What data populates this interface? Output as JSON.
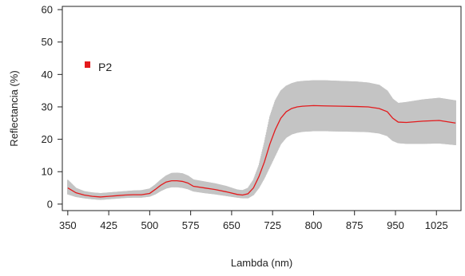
{
  "chart_data": {
    "type": "line",
    "title": "",
    "xlabel": "Lambda (nm)",
    "ylabel": "Reflectancia (%)",
    "xlim": [
      340,
      1070
    ],
    "ylim": [
      -2,
      61
    ],
    "xticks": [
      350,
      425,
      500,
      575,
      650,
      725,
      800,
      875,
      950,
      1025
    ],
    "yticks": [
      0,
      10,
      20,
      30,
      40,
      50,
      60
    ],
    "grid": false,
    "legend": {
      "position": "top-left",
      "entries": [
        {
          "label": "P2",
          "color": "#e31a1c"
        }
      ]
    },
    "series": [
      {
        "name": "P2",
        "color": "#e31a1c",
        "x": [
          350,
          365,
          380,
          395,
          410,
          425,
          440,
          455,
          470,
          485,
          500,
          510,
          520,
          530,
          540,
          550,
          560,
          570,
          580,
          600,
          620,
          640,
          660,
          670,
          680,
          690,
          700,
          710,
          720,
          730,
          740,
          750,
          760,
          770,
          780,
          800,
          820,
          850,
          880,
          900,
          920,
          935,
          945,
          955,
          970,
          1000,
          1030,
          1060
        ],
        "y": [
          5,
          3.5,
          2.8,
          2.4,
          2.2,
          2.4,
          2.6,
          2.8,
          2.9,
          2.9,
          3.3,
          4.5,
          5.8,
          6.8,
          7.2,
          7.2,
          7.0,
          6.5,
          5.5,
          5.0,
          4.5,
          3.8,
          3.0,
          2.8,
          3.2,
          5.0,
          8.5,
          13,
          18.5,
          23,
          26.5,
          28.5,
          29.5,
          30,
          30.2,
          30.4,
          30.3,
          30.2,
          30.1,
          30.0,
          29.5,
          28.5,
          26.5,
          25.3,
          25.2,
          25.6,
          25.8,
          25.0
        ],
        "upper": [
          7.5,
          5.0,
          4.0,
          3.6,
          3.4,
          3.6,
          3.8,
          4.0,
          4.2,
          4.3,
          4.8,
          6.0,
          7.5,
          8.8,
          9.6,
          9.7,
          9.5,
          8.8,
          7.6,
          7.0,
          6.4,
          5.6,
          4.5,
          4.3,
          5.0,
          7.5,
          12,
          19,
          27,
          32,
          35,
          36.5,
          37.3,
          37.8,
          38.0,
          38.2,
          38.2,
          38.0,
          37.8,
          37.5,
          36.8,
          35.0,
          32.5,
          31.2,
          31.5,
          32.3,
          32.8,
          32.0
        ],
        "lower": [
          3.0,
          2.2,
          1.8,
          1.5,
          1.3,
          1.5,
          1.7,
          1.9,
          2.0,
          2.0,
          2.3,
          3.0,
          4.0,
          4.8,
          5.2,
          5.2,
          5.0,
          4.6,
          3.9,
          3.4,
          3.0,
          2.5,
          2.0,
          1.8,
          1.8,
          2.8,
          5.0,
          8.0,
          11.5,
          15,
          18.5,
          20.5,
          21.5,
          22.0,
          22.3,
          22.5,
          22.5,
          22.4,
          22.3,
          22.2,
          21.8,
          21.0,
          19.5,
          18.8,
          18.6,
          18.6,
          18.7,
          18.2
        ]
      }
    ],
    "band_color": "#c4c4c4"
  }
}
